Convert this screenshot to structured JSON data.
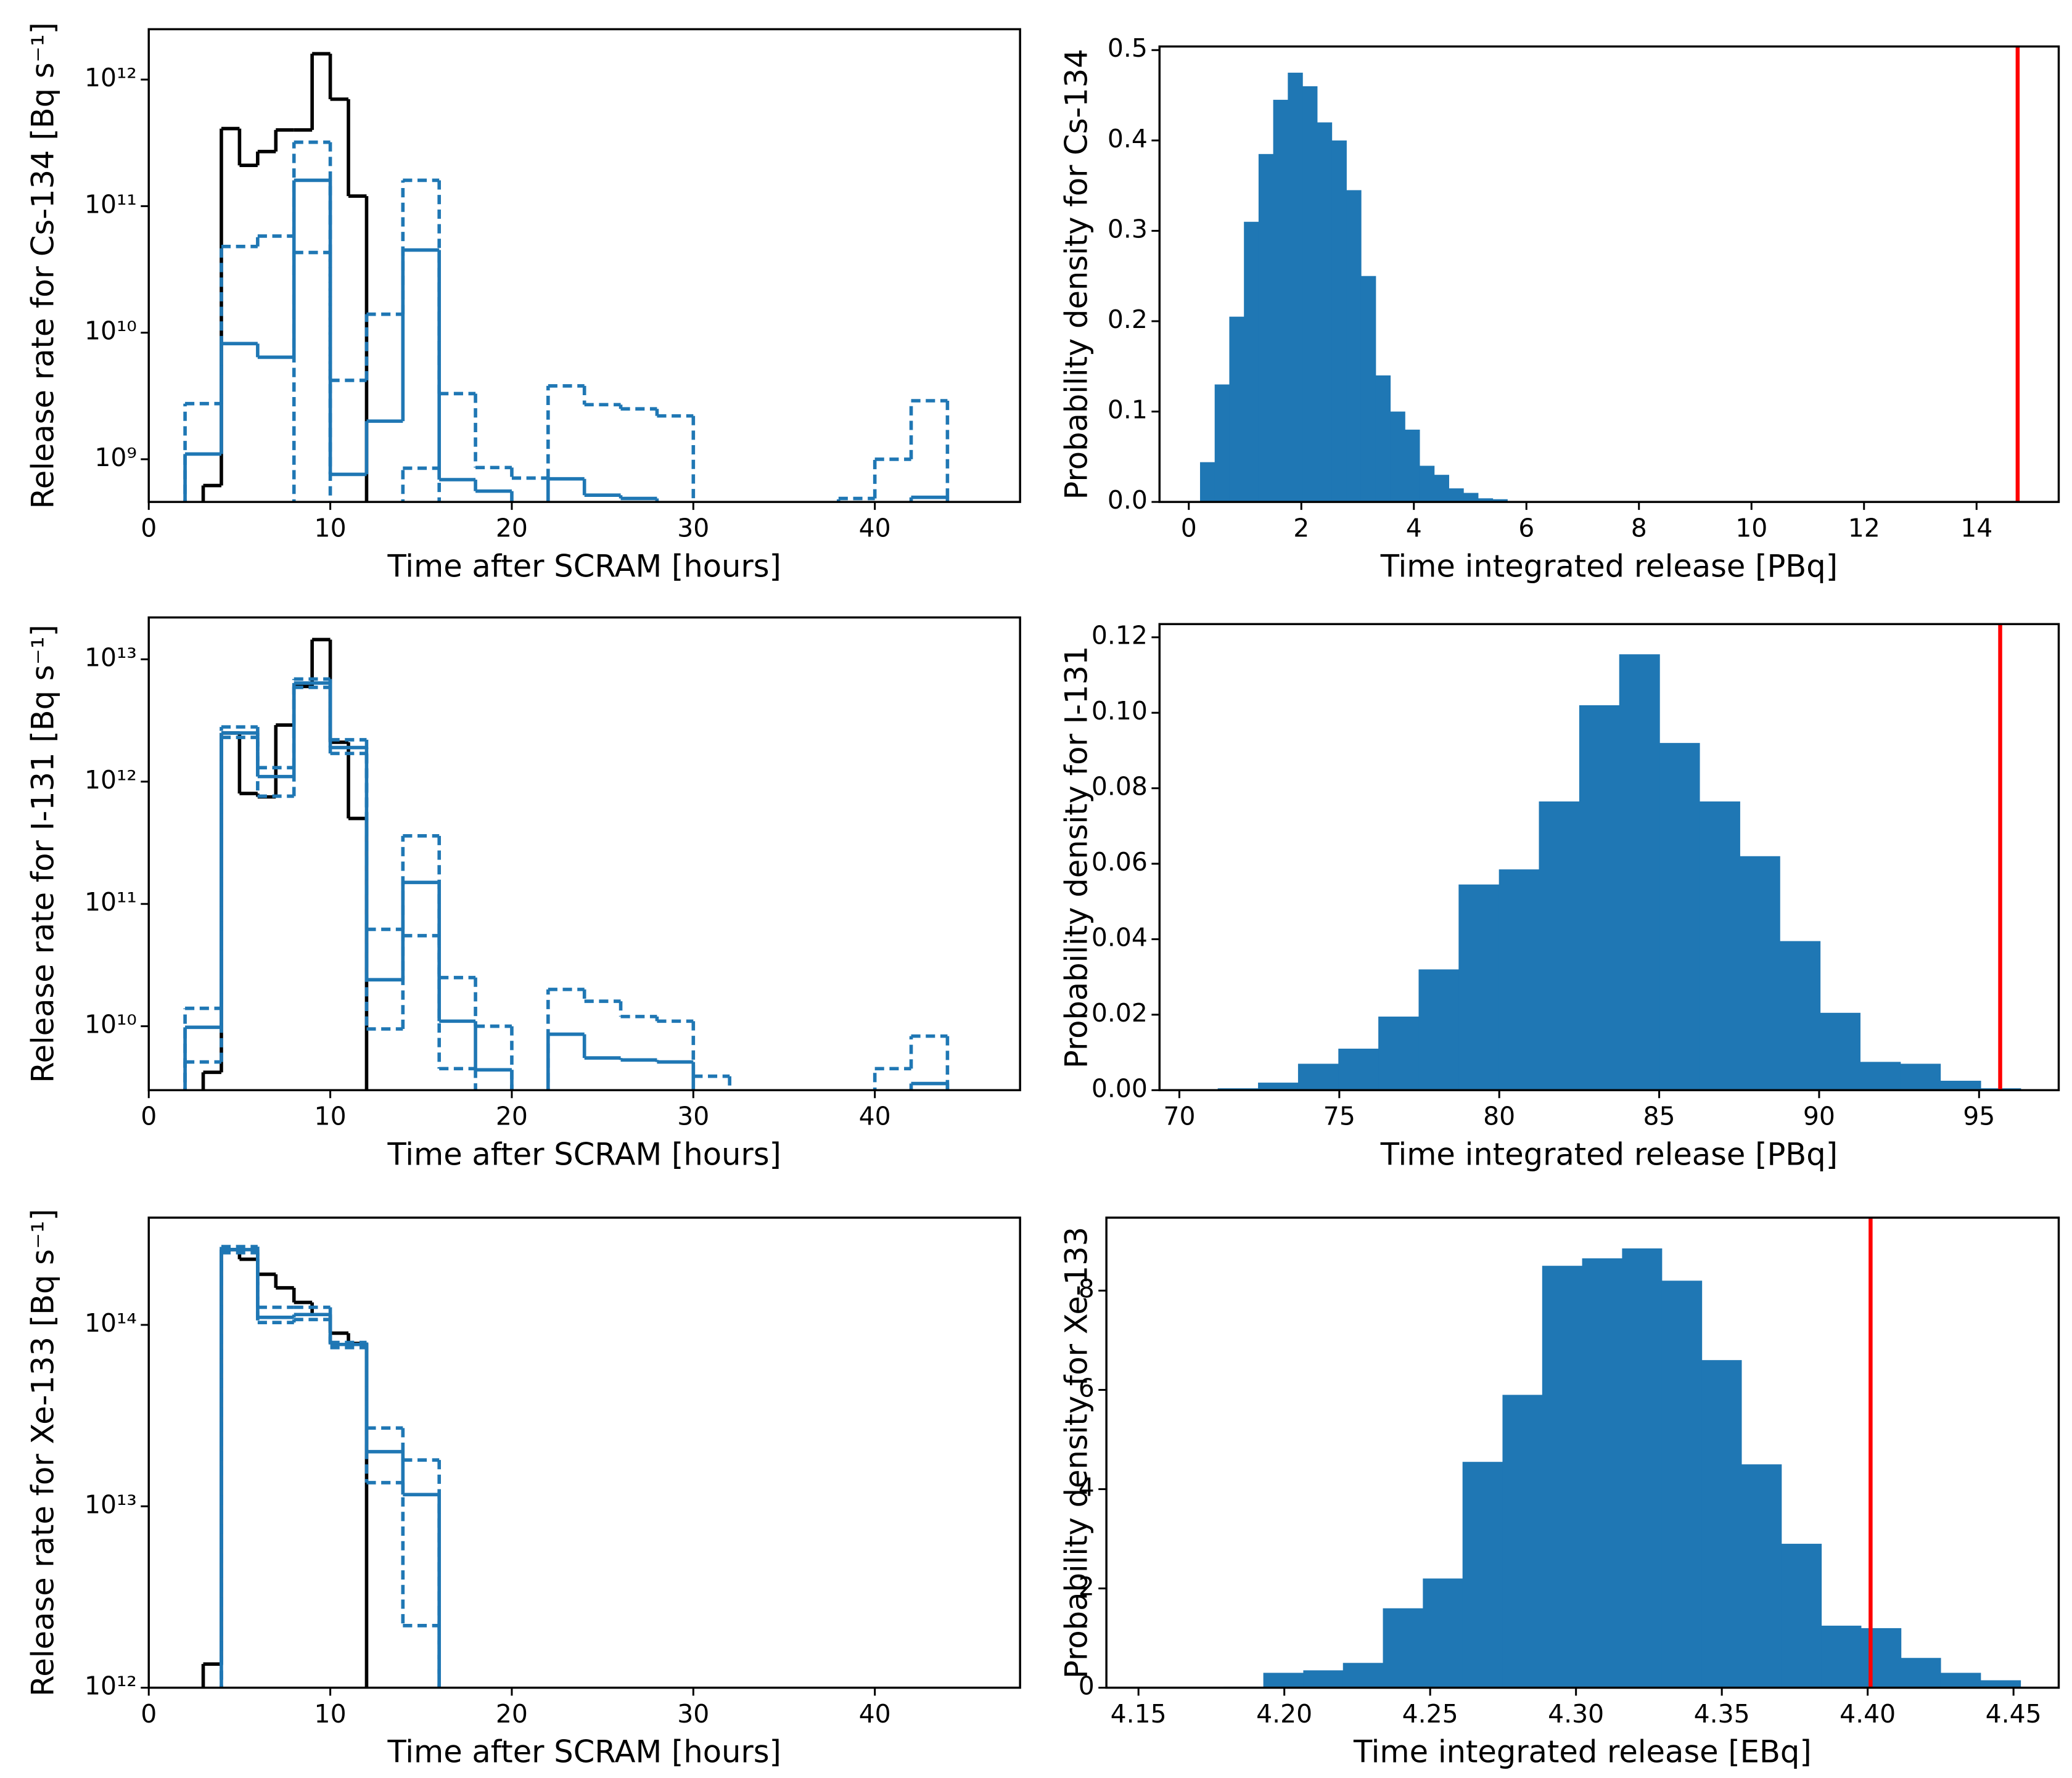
{
  "chart_data": [
    {
      "type": "step",
      "ylabel": "Release rate for Cs-134 [Bq s⁻¹]",
      "xlabel": "Time after SCRAM [hours]",
      "log_y": true,
      "xlim": [
        0,
        48
      ],
      "xticks": [
        0,
        10,
        20,
        30,
        40
      ],
      "ylim": [
        460000000.0,
        2500000000000.0
      ],
      "yticks": [
        {
          "value": 1000000000.0,
          "label": "10⁹"
        },
        {
          "value": 10000000000.0,
          "label": "10¹⁰"
        },
        {
          "value": 100000000000.0,
          "label": "10¹¹"
        },
        {
          "value": 1000000000000.0,
          "label": "10¹²"
        }
      ],
      "series": [
        {
          "color": "#000000",
          "style": "solid",
          "bins": [
            3,
            4,
            5,
            6,
            7,
            8,
            9,
            10,
            11,
            12
          ],
          "values": [
            620000000.0,
            410000000000.0,
            210000000000.0,
            270000000000.0,
            400000000000.0,
            400000000000.0,
            1600000000000.0,
            700000000000.0,
            120000000000.0
          ]
        },
        {
          "color": "#1f77b4",
          "style": "solid",
          "bins": [
            2,
            4,
            6,
            8,
            10,
            12,
            14,
            16,
            18,
            20,
            22,
            24,
            26,
            28,
            30,
            32,
            34,
            36,
            38,
            40,
            42,
            44
          ],
          "values": [
            1100000000.0,
            8200000000.0,
            6400000000.0,
            160000000000.0,
            760000000.0,
            2000000000.0,
            45000000000.0,
            690000000.0,
            560000000.0,
            null,
            700000000.0,
            520000000.0,
            490000000.0,
            null,
            null,
            null,
            null,
            null,
            null,
            null,
            500000000.0
          ]
        },
        {
          "color": "#1f77b4",
          "style": "dashed",
          "bins": [
            2,
            4,
            6,
            8,
            10,
            12,
            14,
            16,
            18,
            20,
            22,
            24,
            26,
            28,
            30,
            32,
            34,
            36,
            38,
            40,
            42,
            44
          ],
          "values": [
            2750000000.0,
            48000000000.0,
            58000000000.0,
            320000000000.0,
            4200000000.0,
            14000000000.0,
            160000000000.0,
            3300000000.0,
            860000000.0,
            710000000.0,
            3800000000.0,
            2700000000.0,
            2500000000.0,
            2200000000.0,
            null,
            null,
            null,
            null,
            490000000.0,
            1000000000.0,
            2900000000.0
          ]
        },
        {
          "color": "#1f77b4",
          "style": "dashed",
          "bins": [
            2,
            4,
            6,
            8,
            10,
            12,
            14,
            16,
            18,
            20,
            22,
            24,
            26,
            28,
            30,
            32,
            34,
            36,
            38,
            40,
            42,
            44
          ],
          "values": [
            null,
            null,
            null,
            43000000000.0,
            null,
            null,
            850000000.0,
            null,
            null,
            null,
            null,
            null,
            null,
            null,
            null,
            null,
            null,
            null,
            null,
            null,
            null
          ]
        }
      ]
    },
    {
      "type": "histogram",
      "ylabel": "Probability density for Cs-134",
      "xlabel": "Time integrated release [PBq]",
      "xlim": [
        -0.52,
        15.46
      ],
      "xticks": [
        0,
        2,
        4,
        6,
        8,
        10,
        12,
        14
      ],
      "ylim": [
        0,
        0.504
      ],
      "yticks": [
        {
          "value": 0,
          "label": "0.0"
        },
        0.1,
        0.2,
        0.3,
        0.4,
        0.5
      ],
      "color": "#1f77b4",
      "bins": [
        0.2,
        0.46,
        0.72,
        0.98,
        1.24,
        1.5,
        1.76,
        2.02,
        2.28,
        2.54,
        2.8,
        3.06,
        3.32,
        3.58,
        3.84,
        4.1,
        4.36,
        4.62,
        4.88,
        5.14,
        5.4,
        5.66
      ],
      "values": [
        0.044,
        0.13,
        0.205,
        0.31,
        0.385,
        0.445,
        0.475,
        0.46,
        0.42,
        0.4,
        0.345,
        0.25,
        0.14,
        0.1,
        0.08,
        0.04,
        0.03,
        0.015,
        0.01,
        0.004,
        0.003
      ],
      "vline": 14.73,
      "vline_color": "#ff0000"
    },
    {
      "type": "step",
      "ylabel": "Release rate for I-131 [Bq s⁻¹]",
      "xlabel": "Time after SCRAM [hours]",
      "log_y": true,
      "xlim": [
        0,
        48
      ],
      "xticks": [
        0,
        10,
        20,
        30,
        40
      ],
      "ylim": [
        3000000000.0,
        22000000000000.0
      ],
      "yticks": [
        {
          "value": 10000000000.0,
          "label": "10¹⁰"
        },
        {
          "value": 100000000000.0,
          "label": "10¹¹"
        },
        {
          "value": 1000000000000.0,
          "label": "10¹²"
        },
        {
          "value": 10000000000000.0,
          "label": "10¹³"
        }
      ],
      "series": [
        {
          "color": "#000000",
          "style": "solid",
          "bins": [
            3,
            4,
            5,
            6,
            7,
            8,
            9,
            10,
            11,
            12
          ],
          "values": [
            4200000000.0,
            2500000000000.0,
            800000000000.0,
            750000000000.0,
            2900000000000.0,
            6000000000000.0,
            14500000000000.0,
            2100000000000.0,
            500000000000.0
          ]
        },
        {
          "color": "#1f77b4",
          "style": "solid",
          "bins": [
            2,
            4,
            6,
            8,
            10,
            12,
            14,
            16,
            18,
            20,
            22,
            24,
            26,
            28,
            30,
            32,
            34,
            36,
            38,
            40,
            42,
            44
          ],
          "values": [
            9800000000.0,
            2500000000000.0,
            1100000000000.0,
            6400000000000.0,
            1900000000000.0,
            24000000000.0,
            150000000000.0,
            11000000000.0,
            4400000000.0,
            null,
            8600000000.0,
            5500000000.0,
            5300000000.0,
            5100000000.0,
            null,
            null,
            null,
            null,
            null,
            null,
            3400000000.0
          ]
        },
        {
          "color": "#1f77b4",
          "style": "dashed",
          "bins": [
            2,
            4,
            6,
            8,
            10,
            12,
            14,
            16,
            18,
            20,
            22,
            24,
            26,
            28,
            30,
            32,
            34,
            36,
            38,
            40,
            42,
            44
          ],
          "values": [
            14000000000.0,
            2800000000000.0,
            1300000000000.0,
            6900000000000.0,
            2200000000000.0,
            62000000000.0,
            360000000000.0,
            25000000000.0,
            10000000000.0,
            null,
            20000000000.0,
            16000000000.0,
            12000000000.0,
            11000000000.0,
            3900000000.0,
            null,
            null,
            null,
            null,
            4500000000.0,
            8300000000.0
          ]
        },
        {
          "color": "#1f77b4",
          "style": "dashed",
          "bins": [
            2,
            4,
            6,
            8,
            10,
            12,
            14,
            16,
            18,
            20,
            22,
            24,
            26,
            28,
            30,
            32,
            34,
            36,
            38,
            40,
            42,
            44
          ],
          "values": [
            5100000000.0,
            2300000000000.0,
            760000000000.0,
            5900000000000.0,
            1700000000000.0,
            9500000000.0,
            55000000000.0,
            4500000000.0,
            null,
            null,
            null,
            null,
            null,
            null,
            null,
            null,
            null,
            null,
            null,
            null,
            null
          ]
        }
      ]
    },
    {
      "type": "histogram",
      "ylabel": "Probability density for I-131",
      "xlabel": "Time integrated release [PBq]",
      "xlim": [
        69.38,
        97.49
      ],
      "xticks": [
        70,
        75,
        80,
        85,
        90,
        95
      ],
      "ylim": [
        0,
        0.1235
      ],
      "yticks": [
        {
          "value": 0,
          "label": "0.00"
        },
        {
          "value": 0.02,
          "label": "0.02"
        },
        {
          "value": 0.04,
          "label": "0.04"
        },
        {
          "value": 0.06,
          "label": "0.06"
        },
        {
          "value": 0.08,
          "label": "0.08"
        },
        {
          "value": 0.1,
          "label": "0.10"
        },
        {
          "value": 0.12,
          "label": "0.12"
        }
      ],
      "color": "#1f77b4",
      "bins": [
        71.2,
        72.46,
        73.71,
        74.97,
        76.22,
        77.48,
        78.73,
        79.99,
        81.24,
        82.5,
        83.75,
        85.01,
        86.26,
        87.52,
        88.77,
        90.03,
        91.28,
        92.54,
        93.79,
        95.05,
        96.3
      ],
      "values": [
        0.0005,
        0.002,
        0.007,
        0.011,
        0.0195,
        0.032,
        0.0545,
        0.0585,
        0.0765,
        0.102,
        0.1155,
        0.092,
        0.0765,
        0.062,
        0.0395,
        0.0205,
        0.0075,
        0.007,
        0.0025,
        0.0005
      ],
      "vline": 95.66,
      "vline_color": "#ff0000"
    },
    {
      "type": "step",
      "ylabel": "Release rate for Xe-133 [Bq s⁻¹]",
      "xlabel": "Time after SCRAM [hours]",
      "log_y": true,
      "xlim": [
        0,
        48
      ],
      "xticks": [
        0,
        10,
        20,
        30,
        40
      ],
      "ylim": [
        1000000000000.0,
        390000000000000.0
      ],
      "yticks": [
        {
          "value": 1000000000000.0,
          "label": "10¹²"
        },
        {
          "value": 10000000000000.0,
          "label": "10¹³"
        },
        {
          "value": 100000000000000.0,
          "label": "10¹⁴"
        }
      ],
      "series": [
        {
          "color": "#000000",
          "style": "solid",
          "bins": [
            3,
            4,
            5,
            6,
            7,
            8,
            9,
            10,
            11,
            12
          ],
          "values": [
            1350000000000.0,
            260000000000000.0,
            230000000000000.0,
            190000000000000.0,
            160000000000000.0,
            133000000000000.0,
            114000000000000.0,
            90000000000000.0,
            79000000000000.0
          ]
        },
        {
          "color": "#1f77b4",
          "style": "solid",
          "bins": [
            4,
            6,
            8,
            10,
            12,
            14,
            16
          ],
          "values": [
            260000000000000.0,
            110000000000000.0,
            114000000000000.0,
            78000000000000.0,
            20000000000000.0,
            11600000000000.0
          ]
        },
        {
          "color": "#1f77b4",
          "style": "dashed",
          "bins": [
            4,
            6,
            8,
            10,
            12,
            14,
            16
          ],
          "values": [
            270000000000000.0,
            125000000000000.0,
            125000000000000.0,
            80000000000000.0,
            27000000000000.0,
            18000000000000.0
          ]
        },
        {
          "color": "#1f77b4",
          "style": "dashed",
          "bins": [
            4,
            6,
            8,
            10,
            12,
            14,
            16
          ],
          "values": [
            250000000000000.0,
            103000000000000.0,
            107000000000000.0,
            75000000000000.0,
            13500000000000.0,
            2200000000000.0
          ]
        }
      ]
    },
    {
      "type": "histogram",
      "ylabel": "Probability density for Xe-133",
      "xlabel": "Time integrated release [EBq]",
      "xlim": [
        4.139,
        4.4655
      ],
      "xticks": [
        4.15,
        {
          "value": 4.2,
          "label": "4.20"
        },
        4.25,
        {
          "value": 4.3,
          "label": "4.30"
        },
        4.35,
        {
          "value": 4.4,
          "label": "4.40"
        },
        4.45
      ],
      "ylim": [
        0,
        9.47
      ],
      "yticks": [
        0,
        2,
        4,
        6,
        8
      ],
      "color": "#1f77b4",
      "bins": [
        4.1655,
        4.1792,
        4.1928,
        4.2065,
        4.2201,
        4.2338,
        4.2475,
        4.2611,
        4.2748,
        4.2884,
        4.3021,
        4.3158,
        4.3294,
        4.3431,
        4.3567,
        4.3704,
        4.3841,
        4.3977,
        4.4114,
        4.425,
        4.4387,
        4.4524
      ],
      "values": [
        0.01,
        0.02,
        0.3,
        0.35,
        0.5,
        1.6,
        2.2,
        4.55,
        5.9,
        8.5,
        8.65,
        8.85,
        8.2,
        6.6,
        4.5,
        2.9,
        1.25,
        1.2,
        0.6,
        0.3,
        0.15
      ],
      "vline": 4.401,
      "vline_color": "#ff0000"
    }
  ]
}
